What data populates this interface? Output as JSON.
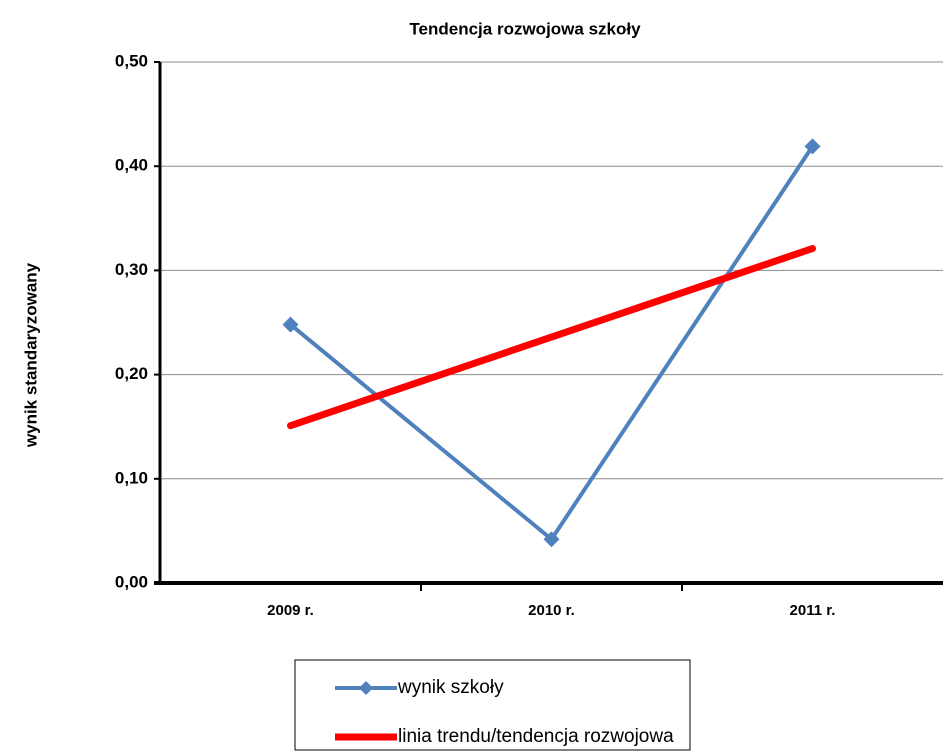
{
  "chart_data": {
    "type": "line",
    "title": "Tendencja rozwojowa szkoły",
    "y_label": "wynik standaryzowany",
    "categories": [
      "2009 r.",
      "2010 r.",
      "2011 r."
    ],
    "series": [
      {
        "name": "wynik szkoły",
        "color": "#4f81bd",
        "values": [
          0.248,
          0.042,
          0.419
        ]
      },
      {
        "name": "linia trendu/tendencja rozwojowa",
        "color": "#ff0000",
        "values": [
          0.151,
          0.236,
          0.321
        ]
      }
    ],
    "ylim": [
      0,
      0.5
    ],
    "yticks": [
      {
        "value": 0,
        "label": "0,00"
      },
      {
        "value": 0.1,
        "label": "0,10"
      },
      {
        "value": 0.2,
        "label": "0,20"
      },
      {
        "value": 0.3,
        "label": "0,30"
      },
      {
        "value": 0.4,
        "label": "0,40"
      },
      {
        "value": 0.5,
        "label": "0,50"
      }
    ],
    "grid": true
  }
}
